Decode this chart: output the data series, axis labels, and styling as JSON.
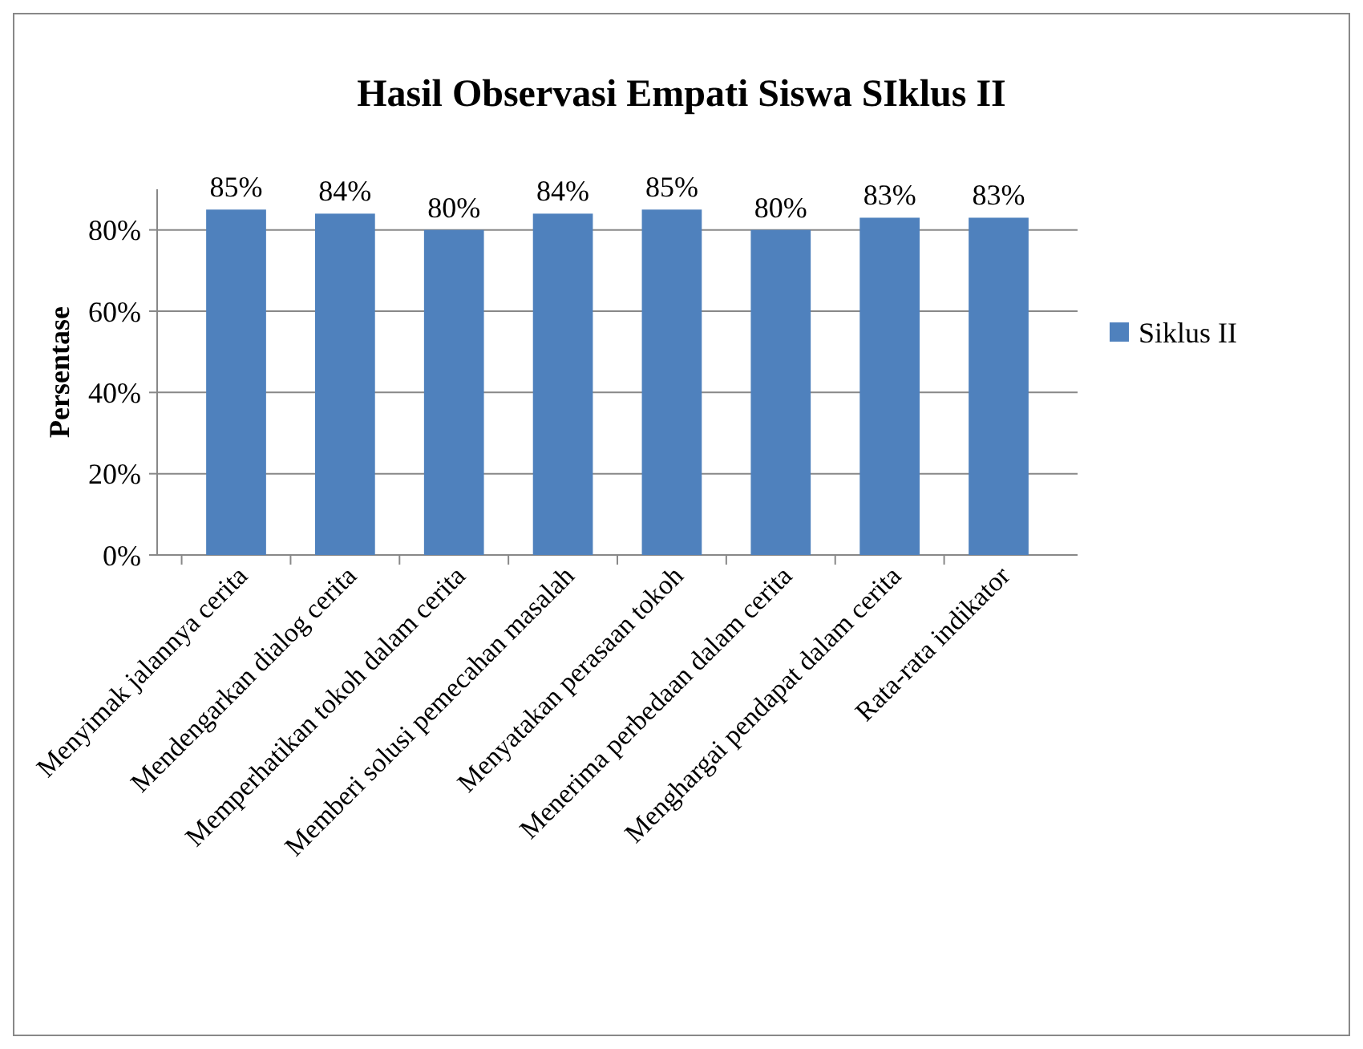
{
  "chart_data": {
    "type": "bar",
    "title": "Hasil Observasi Empati Siswa SIklus II",
    "ylabel": "Persentase",
    "categories": [
      "Menyimak jalannya cerita",
      "Mendengarkan dialog cerita",
      "Memperhatikan tokoh dalam cerita",
      "Memberi solusi pemecahan masalah",
      "Menyatakan perasaan tokoh",
      "Menerima perbedaan dalam cerita",
      "Menghargai pendapat dalam cerita",
      "Rata-rata indikator"
    ],
    "series": [
      {
        "name": "Siklus II",
        "color": "#4f81bd",
        "values": [
          85,
          84,
          80,
          84,
          85,
          80,
          83,
          83
        ],
        "value_labels": [
          "85%",
          "84%",
          "80%",
          "84%",
          "85%",
          "80%",
          "83%",
          "83%"
        ]
      }
    ],
    "ylim": [
      0,
      90
    ],
    "yticks": [
      {
        "value": 0,
        "label": "0%"
      },
      {
        "value": 20,
        "label": "20%"
      },
      {
        "value": 40,
        "label": "40%"
      },
      {
        "value": 60,
        "label": "60%"
      },
      {
        "value": 80,
        "label": "80%"
      }
    ],
    "grid": "y",
    "legend": "right"
  }
}
